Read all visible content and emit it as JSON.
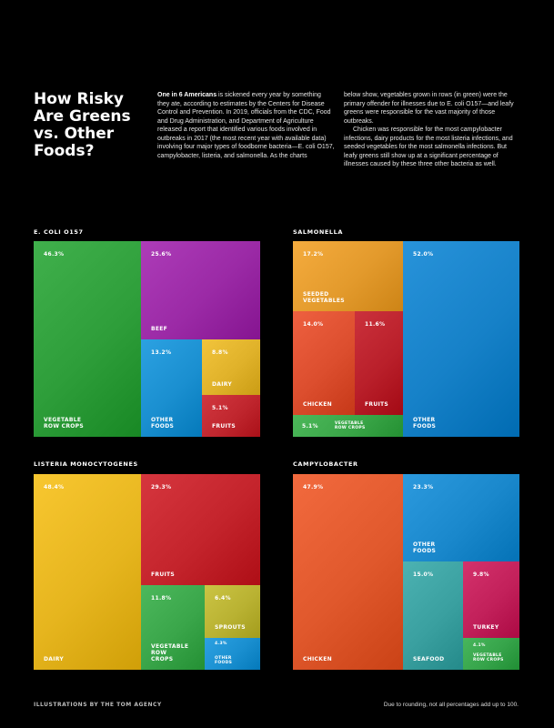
{
  "headline": "How Risky Are Greens vs. Other Foods?",
  "intro": {
    "col1_lead": "One in 6 Americans",
    "col1_text": " is sickened every year by something they ate, according to estimates by the Centers for Disease Control and Prevention. In 2019, officials from the CDC, Food and Drug Administration, and Department of Agriculture released a report that identified various foods involved in outbreaks in 2017 (the most recent year with available data) involving four major types of foodborne bacteria—E. coli O157, campylobacter, listeria, and salmonella. As the charts",
    "col2_p1": "below show, vegetables grown in rows (in green) were the primary offender for illnesses due to E. coli O157—and leafy greens were responsible for the vast majority of those outbreaks.",
    "col2_p2": "Chicken was responsible for the most campylobacter infections, dairy products for the most listeria infections, and seeded vegetables for the most salmonella infections. But leafy greens still show up at a significant percentage of illnesses caused by these three other bacteria as well."
  },
  "chart_data": [
    {
      "type": "treemap",
      "title": "E. COLI O157",
      "categories": [
        "Vegetable Row Crops",
        "Beef",
        "Other Foods",
        "Dairy",
        "Fruits"
      ],
      "values": [
        46.3,
        25.6,
        13.2,
        8.8,
        5.1
      ],
      "value_labels": [
        "46.3%",
        "25.6%",
        "13.2%",
        "8.8%",
        "5.1%"
      ],
      "colors": [
        "#2e9e3a",
        "#9b2aa6",
        "#1a8fd0",
        "#e0b22a",
        "#c0262e"
      ]
    },
    {
      "type": "treemap",
      "title": "SALMONELLA",
      "categories": [
        "Seeded Vegetables",
        "Chicken",
        "Fruits",
        "Vegetable Row Crops",
        "Other Foods"
      ],
      "values": [
        17.2,
        14.0,
        11.6,
        5.1,
        52.0
      ],
      "value_labels": [
        "17.2%",
        "14.0%",
        "11.6%",
        "5.1%",
        "52.0%"
      ],
      "colors": [
        "#e39a2c",
        "#dc4e2e",
        "#b91f2a",
        "#3aa648",
        "#1681c8"
      ]
    },
    {
      "type": "treemap",
      "title": "LISTERIA MONOCYTOGENES",
      "categories": [
        "Dairy",
        "Fruits",
        "Vegetable Row Crops",
        "Sprouts",
        "Other Foods"
      ],
      "values": [
        48.4,
        29.3,
        11.8,
        6.4,
        4.3
      ],
      "value_labels": [
        "48.4%",
        "29.3%",
        "11.8%",
        "6.4%",
        "4.3%"
      ],
      "colors": [
        "#e6b51e",
        "#c4242c",
        "#3aa64a",
        "#b9b232",
        "#1a8fd0"
      ]
    },
    {
      "type": "treemap",
      "title": "CAMPYLOBACTER",
      "categories": [
        "Chicken",
        "Other Foods",
        "Seafood",
        "Turkey",
        "Vegetable Row Crops"
      ],
      "values": [
        47.9,
        23.3,
        15.0,
        9.8,
        4.1
      ],
      "value_labels": [
        "47.9%",
        "23.3%",
        "15.0%",
        "9.8%",
        "4.1%"
      ],
      "colors": [
        "#e0582c",
        "#1a88cc",
        "#3aa0a0",
        "#c2205a",
        "#36a44a"
      ]
    }
  ],
  "display_labels": [
    [
      "VEGETABLE\nROW CROPS",
      "BEEF",
      "OTHER\nFOODS",
      "DAIRY",
      "FRUITS"
    ],
    [
      "SEEDED\nVEGETABLES",
      "CHICKEN",
      "FRUITS",
      "VEGETABLE\nROW CROPS",
      "OTHER\nFOODS"
    ],
    [
      "DAIRY",
      "FRUITS",
      "VEGETABLE\nROW\nCROPS",
      "SPROUTS",
      "OTHER\nFOODS"
    ],
    [
      "CHICKEN",
      "OTHER\nFOODS",
      "SEAFOOD",
      "TURKEY",
      "VEGETABLE\nROW CROPS"
    ]
  ],
  "footer": {
    "credit": "ILLUSTRATIONS BY THE TOM AGENCY",
    "note": "Due to rounding, not all percentages add up to 100."
  }
}
